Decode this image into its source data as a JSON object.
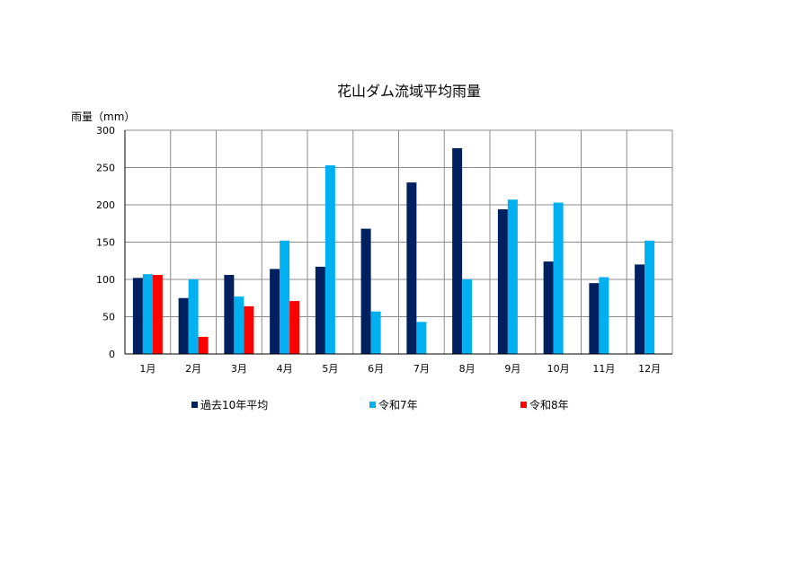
{
  "chart_data": {
    "type": "bar",
    "title": "花山ダム流域平均雨量",
    "ylabel": "雨量（mm）",
    "xlabel": "",
    "categories": [
      "1月",
      "2月",
      "3月",
      "4月",
      "5月",
      "6月",
      "7月",
      "8月",
      "9月",
      "10月",
      "11月",
      "12月"
    ],
    "ylim": [
      0,
      300
    ],
    "yticks": [
      0,
      50,
      100,
      150,
      200,
      250,
      300
    ],
    "grid": true,
    "legend_position": "bottom",
    "series": [
      {
        "name": "過去10年平均",
        "color": "#002060",
        "values": [
          102,
          75,
          106,
          114,
          117,
          168,
          230,
          276,
          194,
          124,
          95,
          120
        ]
      },
      {
        "name": "令和7年",
        "color": "#00B0F0",
        "values": [
          107,
          100,
          77,
          152,
          253,
          57,
          43,
          100,
          207,
          203,
          103,
          152
        ]
      },
      {
        "name": "令和8年",
        "color": "#FF0000",
        "values": [
          106,
          23,
          64,
          71,
          null,
          null,
          null,
          null,
          null,
          null,
          null,
          null
        ]
      }
    ]
  }
}
